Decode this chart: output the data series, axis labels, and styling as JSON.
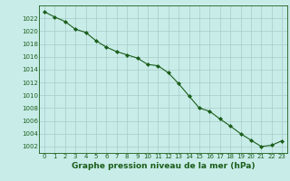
{
  "x": [
    0,
    1,
    2,
    3,
    4,
    5,
    6,
    7,
    8,
    9,
    10,
    11,
    12,
    13,
    14,
    15,
    16,
    17,
    18,
    19,
    20,
    21,
    22,
    23
  ],
  "y": [
    1023.0,
    1022.2,
    1021.5,
    1020.3,
    1019.8,
    1018.5,
    1017.5,
    1016.8,
    1016.3,
    1015.8,
    1014.8,
    1014.6,
    1013.5,
    1011.8,
    1009.9,
    1008.0,
    1007.5,
    1006.3,
    1005.2,
    1004.0,
    1003.0,
    1002.0,
    1002.2,
    1002.9
  ],
  "line_color": "#1a5e1a",
  "marker": "D",
  "marker_size": 2.0,
  "bg_color": "#c8ece8",
  "grid_color": "#a8ccc8",
  "xlabel": "Graphe pression niveau de la mer (hPa)",
  "xlabel_color": "#1a5e1a",
  "tick_color": "#1a5e1a",
  "ylim": [
    1001,
    1024
  ],
  "xlim": [
    -0.5,
    23.5
  ],
  "yticks": [
    1002,
    1004,
    1006,
    1008,
    1010,
    1012,
    1014,
    1016,
    1018,
    1020,
    1022
  ],
  "xticks": [
    0,
    1,
    2,
    3,
    4,
    5,
    6,
    7,
    8,
    9,
    10,
    11,
    12,
    13,
    14,
    15,
    16,
    17,
    18,
    19,
    20,
    21,
    22,
    23
  ],
  "tick_fontsize": 5.0,
  "xlabel_fontsize": 6.5
}
